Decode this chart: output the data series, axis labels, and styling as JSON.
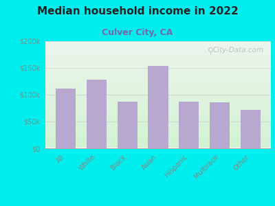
{
  "title": "Median household income in 2022",
  "subtitle": "Culver City, CA",
  "categories": [
    "All",
    "White",
    "Black",
    "Asian",
    "Hispanic",
    "Multirace",
    "Other"
  ],
  "values": [
    112000,
    128000,
    87000,
    154000,
    87000,
    86000,
    72000
  ],
  "bar_color": "#b8a8d0",
  "outer_bg": "#00eeee",
  "title_color": "#222222",
  "subtitle_color": "#7766aa",
  "tick_color": "#888888",
  "ytick_color": "#888888",
  "ylim": [
    0,
    200000
  ],
  "yticks": [
    0,
    50000,
    100000,
    150000,
    200000
  ],
  "ytick_labels": [
    "$0",
    "$50k",
    "$100k",
    "$150k",
    "$200k"
  ],
  "watermark": "City-Data.com",
  "title_fontsize": 11,
  "subtitle_fontsize": 9
}
